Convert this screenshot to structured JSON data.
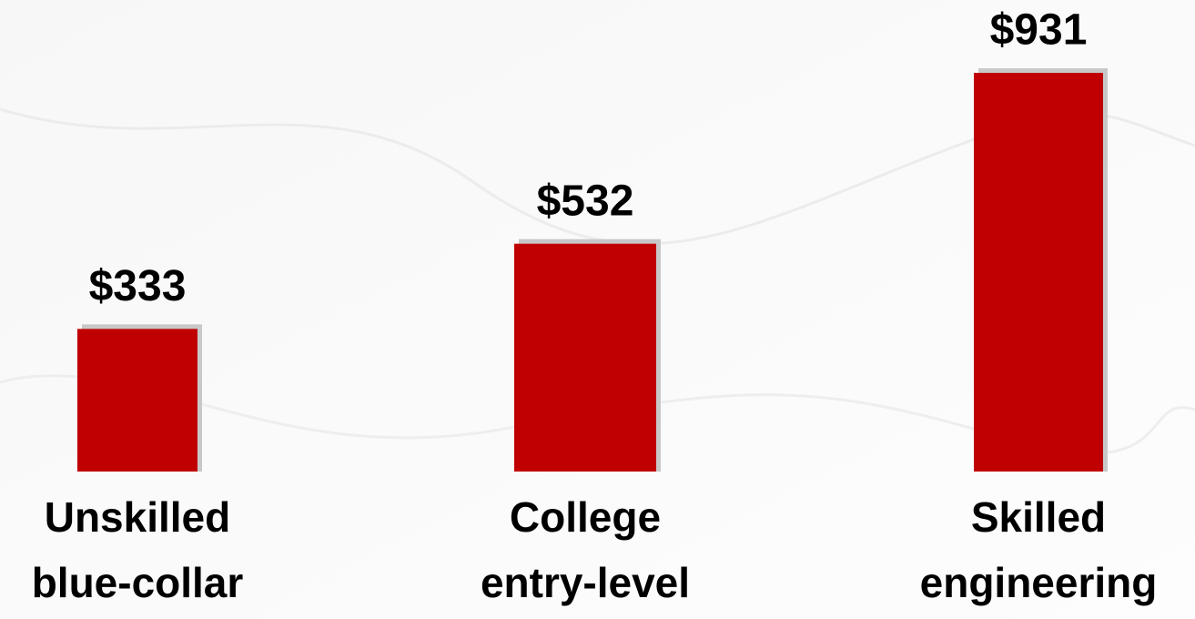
{
  "chart_data": {
    "type": "bar",
    "categories": [
      [
        "Unskilled",
        "blue-collar"
      ],
      [
        "College",
        "entry-level"
      ],
      [
        "Skilled",
        "engineering"
      ]
    ],
    "values": [
      333,
      532,
      931
    ],
    "value_labels": [
      "$333",
      "$532",
      "$931"
    ],
    "color": "#c00000"
  }
}
